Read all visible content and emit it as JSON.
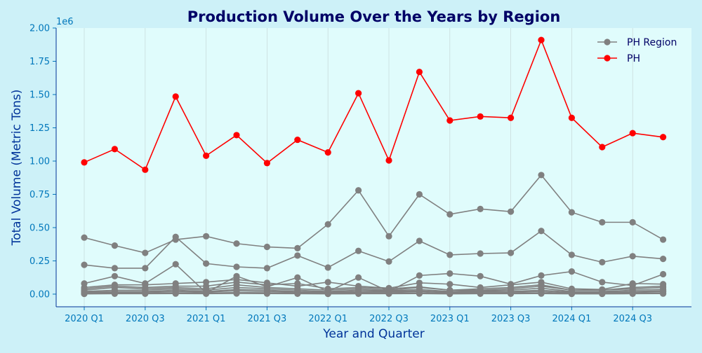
{
  "chart_data": {
    "type": "line",
    "title": "Production Volume Over the Years by Region",
    "xlabel": "Year and Quarter",
    "ylabel": "Total Volume (Metric Tons)",
    "y_offset_text": "1e6",
    "ylim": [
      -95000,
      2000000
    ],
    "yticks": [
      0,
      250000,
      500000,
      750000,
      1000000,
      1250000,
      1500000,
      1750000,
      2000000
    ],
    "ytick_labels": [
      "0.00",
      "0.25",
      "0.50",
      "0.75",
      "1.00",
      "1.25",
      "1.50",
      "1.75",
      "2.00"
    ],
    "categories": [
      "2020 Q1",
      "2020 Q2",
      "2020 Q3",
      "2020 Q4",
      "2021 Q1",
      "2021 Q2",
      "2021 Q3",
      "2021 Q4",
      "2022 Q1",
      "2022 Q2",
      "2022 Q3",
      "2022 Q4",
      "2023 Q1",
      "2023 Q2",
      "2023 Q3",
      "2023 Q4",
      "2024 Q1",
      "2024 Q2",
      "2024 Q3",
      "2024 Q4"
    ],
    "xtick_labels": [
      "2020 Q1",
      "2020 Q3",
      "2021 Q1",
      "2021 Q3",
      "2022 Q1",
      "2022 Q3",
      "2023 Q1",
      "2023 Q3",
      "2024 Q1",
      "2024 Q3"
    ],
    "grid": true,
    "legend_position": "top-right",
    "legend": [
      {
        "label": "PH Region",
        "color": "#808080"
      },
      {
        "label": "PH",
        "color": "#ff0000"
      }
    ],
    "colors": {
      "background": "#cdf1f8",
      "plot_background": "#e0fcfc",
      "title": "#000066",
      "axis_label": "#003399",
      "tick_label": "#0077bb",
      "region_series": "#808080",
      "ph_series": "#ff0000"
    },
    "series": [
      {
        "name": "PH",
        "color": "#ff0000",
        "values": [
          990000,
          1090000,
          935000,
          1485000,
          1040000,
          1195000,
          985000,
          1160000,
          1065000,
          1510000,
          1005000,
          1670000,
          1305000,
          1335000,
          1325000,
          1910000,
          1325000,
          1105000,
          1210000,
          1180000
        ]
      },
      {
        "values": [
          425000,
          365000,
          310000,
          410000,
          435000,
          380000,
          355000,
          345000,
          525000,
          780000,
          435000,
          750000,
          600000,
          640000,
          620000,
          895000,
          615000,
          540000,
          540000,
          410000
        ]
      },
      {
        "values": [
          220000,
          195000,
          195000,
          430000,
          230000,
          205000,
          195000,
          290000,
          200000,
          325000,
          245000,
          400000,
          295000,
          305000,
          310000,
          475000,
          295000,
          240000,
          285000,
          265000
        ]
      },
      {
        "values": [
          80000,
          135000,
          80000,
          225000,
          10000,
          135000,
          55000,
          125000,
          20000,
          125000,
          20000,
          140000,
          155000,
          135000,
          75000,
          140000,
          170000,
          90000,
          65000,
          150000
        ]
      },
      {
        "values": [
          50000,
          70000,
          70000,
          80000,
          90000,
          110000,
          85000,
          60000,
          90000,
          60000,
          45000,
          85000,
          75000,
          50000,
          70000,
          90000,
          40000,
          35000,
          80000,
          75000
        ]
      },
      {
        "values": [
          40000,
          60000,
          50000,
          60000,
          60000,
          90000,
          70000,
          80000,
          40000,
          50000,
          40000,
          55000,
          30000,
          40000,
          50000,
          70000,
          30000,
          30000,
          50000,
          60000
        ]
      },
      {
        "values": [
          30000,
          50000,
          40000,
          50000,
          40000,
          70000,
          50000,
          40000,
          30000,
          40000,
          30000,
          50000,
          30000,
          30000,
          40000,
          60000,
          30000,
          30000,
          40000,
          50000
        ]
      },
      {
        "values": [
          20000,
          30000,
          30000,
          40000,
          30000,
          50000,
          40000,
          30000,
          20000,
          30000,
          25000,
          35000,
          20000,
          25000,
          30000,
          45000,
          20000,
          20000,
          30000,
          35000
        ]
      },
      {
        "values": [
          15000,
          20000,
          20000,
          30000,
          20000,
          35000,
          30000,
          20000,
          15000,
          20000,
          20000,
          25000,
          15000,
          20000,
          20000,
          30000,
          15000,
          15000,
          20000,
          25000
        ]
      },
      {
        "values": [
          10000,
          15000,
          15000,
          20000,
          15000,
          25000,
          20000,
          15000,
          10000,
          15000,
          15000,
          20000,
          10000,
          15000,
          15000,
          20000,
          10000,
          10000,
          15000,
          20000
        ]
      },
      {
        "values": [
          5000,
          8000,
          8000,
          10000,
          8000,
          12000,
          10000,
          8000,
          5000,
          8000,
          8000,
          10000,
          5000,
          8000,
          8000,
          10000,
          5000,
          5000,
          8000,
          10000
        ]
      },
      {
        "values": [
          2000,
          3000,
          3000,
          4000,
          3000,
          5000,
          4000,
          3000,
          2000,
          3000,
          3000,
          4000,
          2000,
          3000,
          3000,
          4000,
          2000,
          2000,
          3000,
          4000
        ]
      }
    ]
  }
}
